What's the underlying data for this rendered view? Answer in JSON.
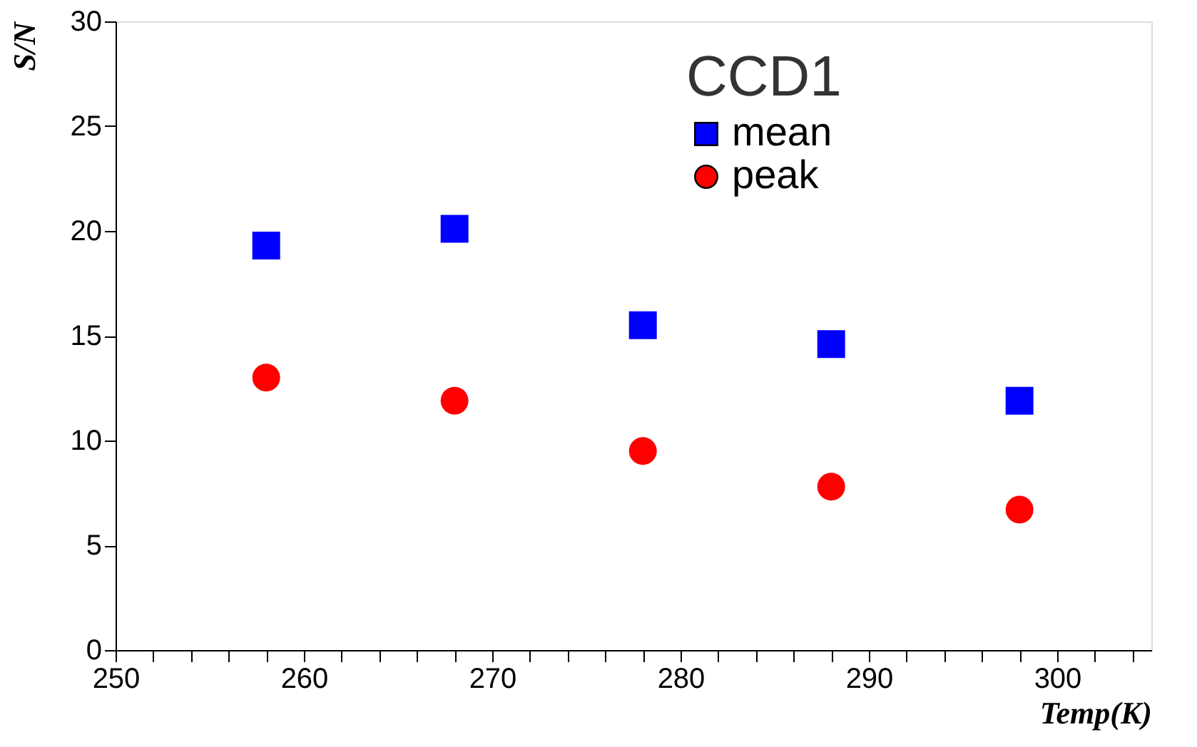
{
  "chart_data": {
    "type": "scatter",
    "xlabel": "Temp(K)",
    "ylabel": "S/N",
    "legend_title": "CCD1",
    "legend": "top right",
    "grid": false,
    "x": [
      258,
      268,
      278,
      288,
      298
    ],
    "series": [
      {
        "name": "mean",
        "color": "#0000ff",
        "marker": "square",
        "values": [
          19.3,
          20.1,
          15.5,
          14.6,
          11.9
        ]
      },
      {
        "name": "peak",
        "color": "#ff0000",
        "marker": "circle",
        "values": [
          13.0,
          11.9,
          9.5,
          7.8,
          6.7
        ]
      }
    ],
    "xlim": [
      250,
      305
    ],
    "xticks": [
      250,
      {
        "value": 252,
        "label": null
      },
      {
        "value": 254,
        "label": null
      },
      {
        "value": 256,
        "label": null
      },
      {
        "value": 258,
        "label": null
      },
      260,
      {
        "value": 262,
        "label": null
      },
      {
        "value": 264,
        "label": null
      },
      {
        "value": 266,
        "label": null
      },
      {
        "value": 268,
        "label": null
      },
      270,
      {
        "value": 272,
        "label": null
      },
      {
        "value": 274,
        "label": null
      },
      {
        "value": 276,
        "label": null
      },
      {
        "value": 278,
        "label": null
      },
      280,
      {
        "value": 282,
        "label": null
      },
      {
        "value": 284,
        "label": null
      },
      {
        "value": 286,
        "label": null
      },
      {
        "value": 288,
        "label": null
      },
      290,
      {
        "value": 292,
        "label": null
      },
      {
        "value": 294,
        "label": null
      },
      {
        "value": 296,
        "label": null
      },
      {
        "value": 298,
        "label": null
      },
      300,
      {
        "value": 302,
        "label": null
      },
      {
        "value": 304,
        "label": null
      }
    ],
    "ylim": [
      0,
      30
    ],
    "yticks": [
      0,
      5,
      10,
      15,
      20,
      25,
      30
    ]
  }
}
